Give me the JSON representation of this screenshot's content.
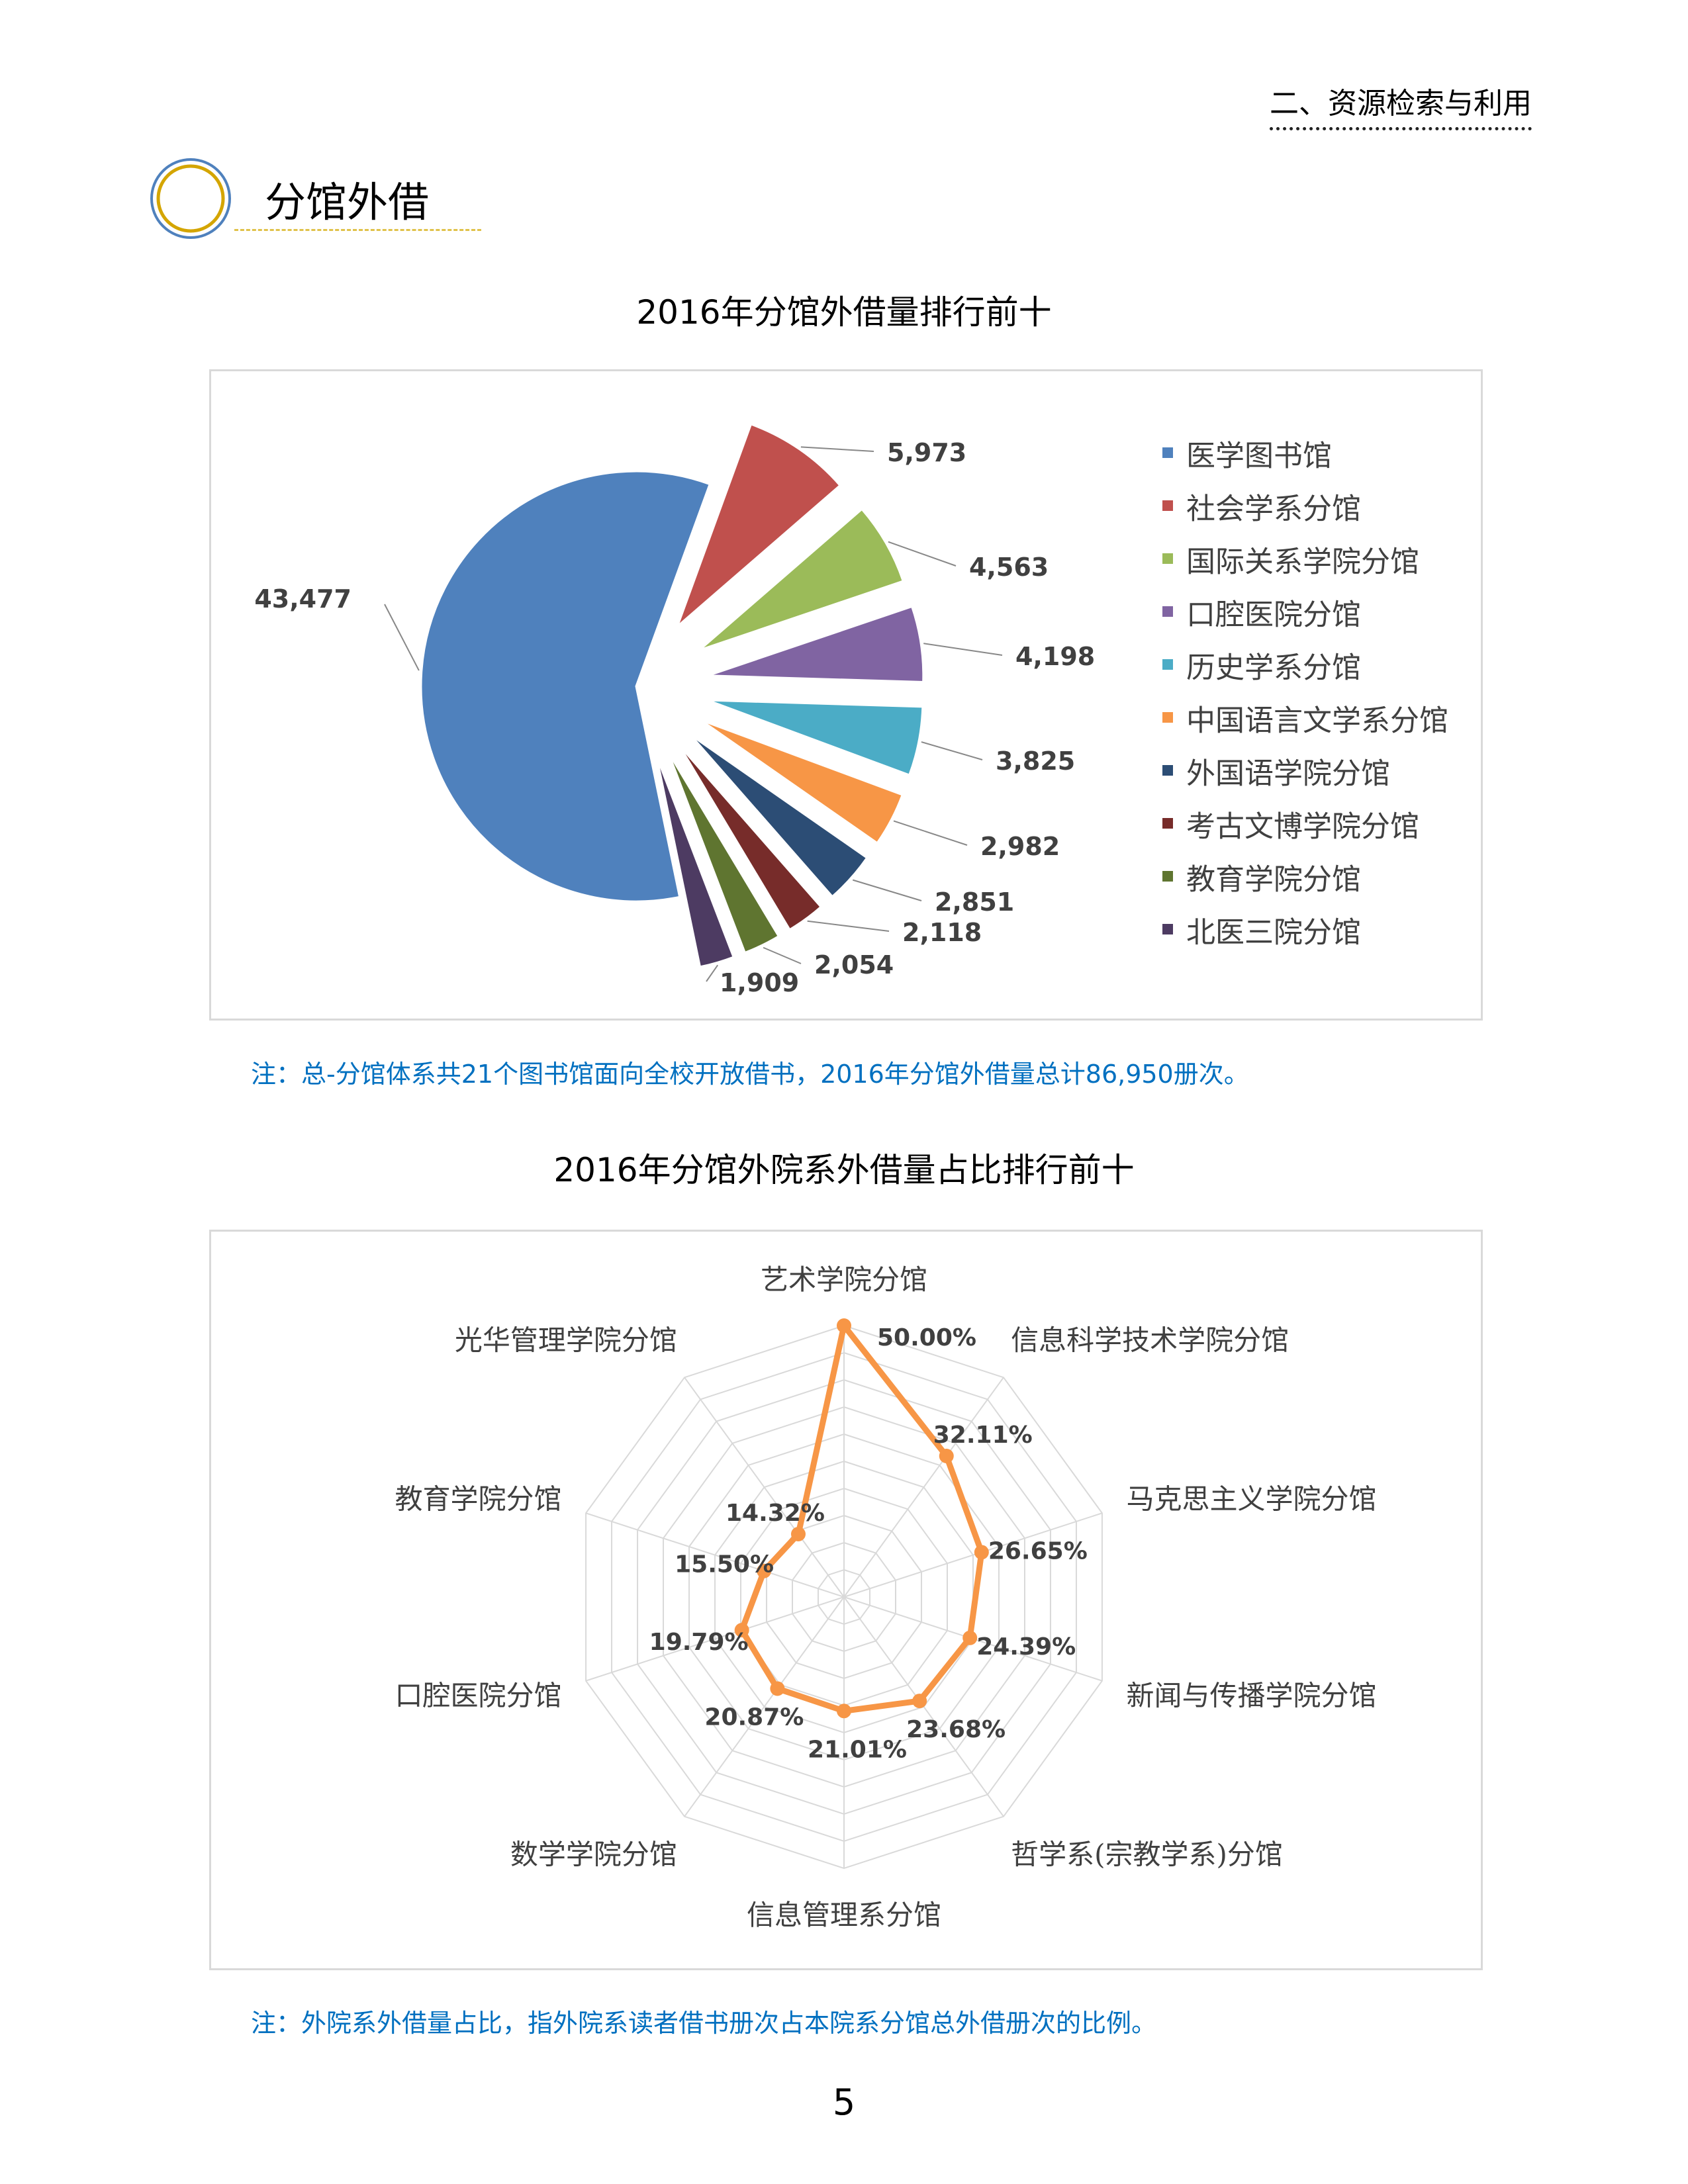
{
  "header": {
    "section": "二、资源检索与利用"
  },
  "section_title": "分馆外借",
  "page_number": "5",
  "colors": {
    "note": "#0070c0",
    "circle_outer": "#4f81bd",
    "circle_inner": "#d4a500",
    "radar_line": "#f79646"
  },
  "chart_data": [
    {
      "type": "pie",
      "title": "2016年分馆外借量排行前十",
      "categories": [
        "医学图书馆",
        "社会学系分馆",
        "国际关系学院分馆",
        "口腔医院分馆",
        "历史学系分馆",
        "中国语言文学系分馆",
        "外国语学院分馆",
        "考古文博学院分馆",
        "教育学院分馆",
        "北医三院分馆"
      ],
      "values": [
        43477,
        5973,
        4563,
        4198,
        3825,
        2982,
        2851,
        2118,
        2054,
        1909
      ],
      "value_labels": [
        "43,477",
        "5,973",
        "4,563",
        "4,198",
        "3,825",
        "2,982",
        "2,851",
        "2,118",
        "2,054",
        "1,909"
      ],
      "colors": [
        "#4f81bd",
        "#c0504d",
        "#9bbb59",
        "#8064a2",
        "#4bacc6",
        "#f79646",
        "#2c4d75",
        "#772c2a",
        "#5f7530",
        "#4d3b62"
      ],
      "exploded": true,
      "legend_position": "right"
    },
    {
      "type": "radar",
      "title": "2016年分馆外院系外借量占比排行前十",
      "categories": [
        "艺术学院分馆",
        "信息科学技术学院分馆",
        "马克思主义学院分馆",
        "新闻与传播学院分馆",
        "哲学系(宗教学系)分馆",
        "信息管理系分馆",
        "数学学院分馆",
        "口腔医院分馆",
        "教育学院分馆",
        "光华管理学院分馆"
      ],
      "values": [
        50.0,
        32.11,
        26.65,
        24.39,
        23.68,
        21.01,
        20.87,
        19.79,
        15.5,
        14.32
      ],
      "value_labels": [
        "50.00%",
        "32.11%",
        "26.65%",
        "24.39%",
        "23.68%",
        "21.01%",
        "20.87%",
        "19.79%",
        "15.50%",
        "14.32%"
      ],
      "axis_max": 50,
      "grid_step": 5,
      "grid": true,
      "color": "#f79646"
    }
  ],
  "notes": {
    "pie": "注：总-分馆体系共21个图书馆面向全校开放借书，2016年分馆外借量总计86,950册次。",
    "radar": "注：外院系外借量占比，指外院系读者借书册次占本院系分馆总外借册次的比例。"
  }
}
